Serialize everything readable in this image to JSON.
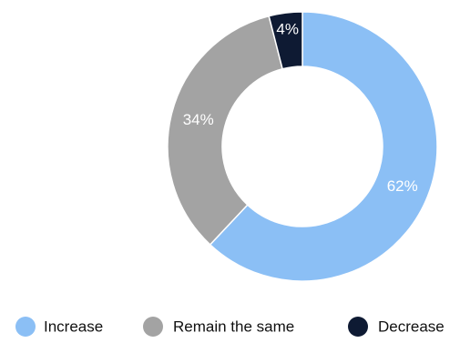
{
  "chart_data": {
    "type": "pie",
    "variant": "donut",
    "categories": [
      "Increase",
      "Remain the same",
      "Decrease"
    ],
    "values": [
      62,
      34,
      4
    ],
    "value_labels": [
      "62%",
      "34%",
      "4%"
    ],
    "colors": [
      "#8bbff5",
      "#a3a3a3",
      "#0e1a33"
    ],
    "label_colors": [
      "#ffffff",
      "#ffffff",
      "#ffffff"
    ],
    "start_angle_deg": 0,
    "direction": "clockwise",
    "legend": {
      "position": "bottom",
      "items": [
        {
          "label": "Increase",
          "color": "#8bbff5"
        },
        {
          "label": "Remain the same",
          "color": "#a3a3a3"
        },
        {
          "label": "Decrease",
          "color": "#0e1a33"
        }
      ]
    }
  }
}
